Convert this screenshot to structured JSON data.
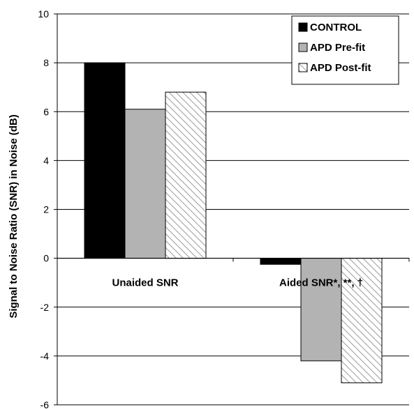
{
  "chart_data": {
    "type": "bar",
    "categories": [
      "Unaided SNR",
      "Aided SNR*, **, †"
    ],
    "series": [
      {
        "name": "CONTROL",
        "values": [
          8.0,
          -0.25
        ],
        "color": "#000000",
        "pattern": "solid"
      },
      {
        "name": "APD Pre-fit",
        "values": [
          6.1,
          -4.2
        ],
        "color": "#b3b3b3",
        "pattern": "solid"
      },
      {
        "name": "APD Post-fit",
        "values": [
          6.8,
          -5.1
        ],
        "color": "#ffffff",
        "pattern": "diagonal-hatch"
      }
    ],
    "ylabel": "Signal to Noise Ratio (SNR) in Noise (dB)",
    "xlabel": "",
    "title": "",
    "ylim": [
      -6,
      10
    ],
    "yticks": [
      10,
      8,
      6,
      4,
      2,
      0,
      -2,
      -4,
      -6
    ],
    "grid": true,
    "legend_position": "top-right"
  }
}
